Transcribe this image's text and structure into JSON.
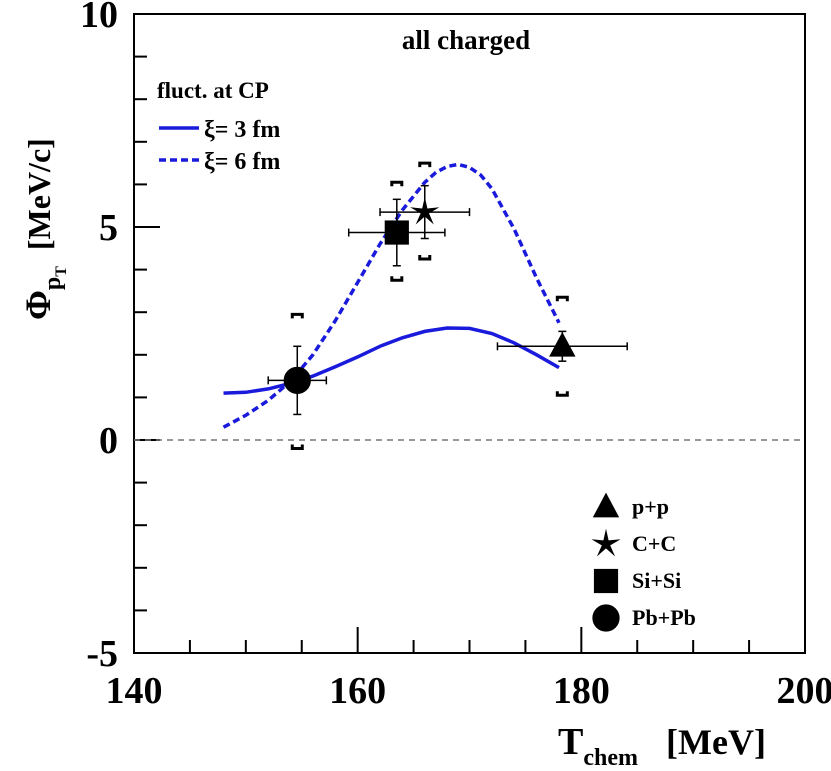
{
  "chart_data": {
    "type": "scatter",
    "title": "all charged",
    "xlabel": "T",
    "xlabel_sub": "chem",
    "xlabel_unit": "[MeV]",
    "ylabel_symbol": "Φ",
    "ylabel_sub": "p",
    "ylabel_subsub": "T",
    "ylabel_unit": "[MeV/c]",
    "xlim": [
      140,
      200
    ],
    "ylim": [
      -5,
      10
    ],
    "xticks": [
      140,
      160,
      180,
      200
    ],
    "xtick_labels": [
      "140",
      "160",
      "180",
      "200"
    ],
    "yticks": [
      -5,
      0,
      5,
      10
    ],
    "ytick_labels": [
      "-5",
      "0",
      "5",
      "10"
    ],
    "zero_line": true,
    "colors": {
      "model": "#1a1adc",
      "data": "#000000",
      "zero_line": "#777777"
    },
    "model_legend": {
      "title": "fluct. at CP",
      "entries": [
        {
          "label": "ξ= 3 fm",
          "style": "solid"
        },
        {
          "label": "ξ= 6 fm",
          "style": "dashed"
        }
      ]
    },
    "model_curves": [
      {
        "name": "ξ= 3 fm",
        "style": "solid",
        "x": [
          148,
          150,
          152,
          154,
          156,
          158,
          160,
          162,
          164,
          166,
          168,
          170,
          172,
          174,
          176,
          178
        ],
        "y": [
          1.1,
          1.12,
          1.2,
          1.33,
          1.5,
          1.72,
          1.95,
          2.2,
          2.4,
          2.55,
          2.63,
          2.62,
          2.5,
          2.28,
          2.0,
          1.7
        ]
      },
      {
        "name": "ξ= 6 fm",
        "style": "dashed",
        "x": [
          148,
          150,
          152,
          154,
          156,
          158,
          160,
          162,
          164,
          166,
          167,
          168,
          169,
          170,
          171,
          172,
          174,
          176,
          178
        ],
        "y": [
          0.3,
          0.58,
          0.93,
          1.38,
          2.0,
          2.8,
          3.7,
          4.6,
          5.4,
          6.05,
          6.28,
          6.42,
          6.47,
          6.4,
          6.22,
          5.9,
          4.95,
          3.8,
          2.75
        ]
      }
    ],
    "series": [
      {
        "name": "p+p",
        "marker": "triangle",
        "x": 178.3,
        "y": 2.2,
        "xerr": 5.8,
        "yerr": 0.35,
        "sys": [
          1.05,
          3.35
        ]
      },
      {
        "name": "C+C",
        "marker": "star",
        "x": 166.0,
        "y": 5.35,
        "xerr": 4.0,
        "yerr": 0.62,
        "sys": [
          4.25,
          6.5
        ]
      },
      {
        "name": "Si+Si",
        "marker": "square",
        "x": 163.5,
        "y": 4.87,
        "xerr": 4.3,
        "yerr": 0.78,
        "sys": [
          3.75,
          6.05
        ]
      },
      {
        "name": "Pb+Pb",
        "marker": "circle",
        "x": 154.6,
        "y": 1.4,
        "xerr": 2.6,
        "yerr": 0.8,
        "sys": [
          -0.2,
          2.95
        ]
      }
    ],
    "legend_placement": "bottom-right"
  }
}
